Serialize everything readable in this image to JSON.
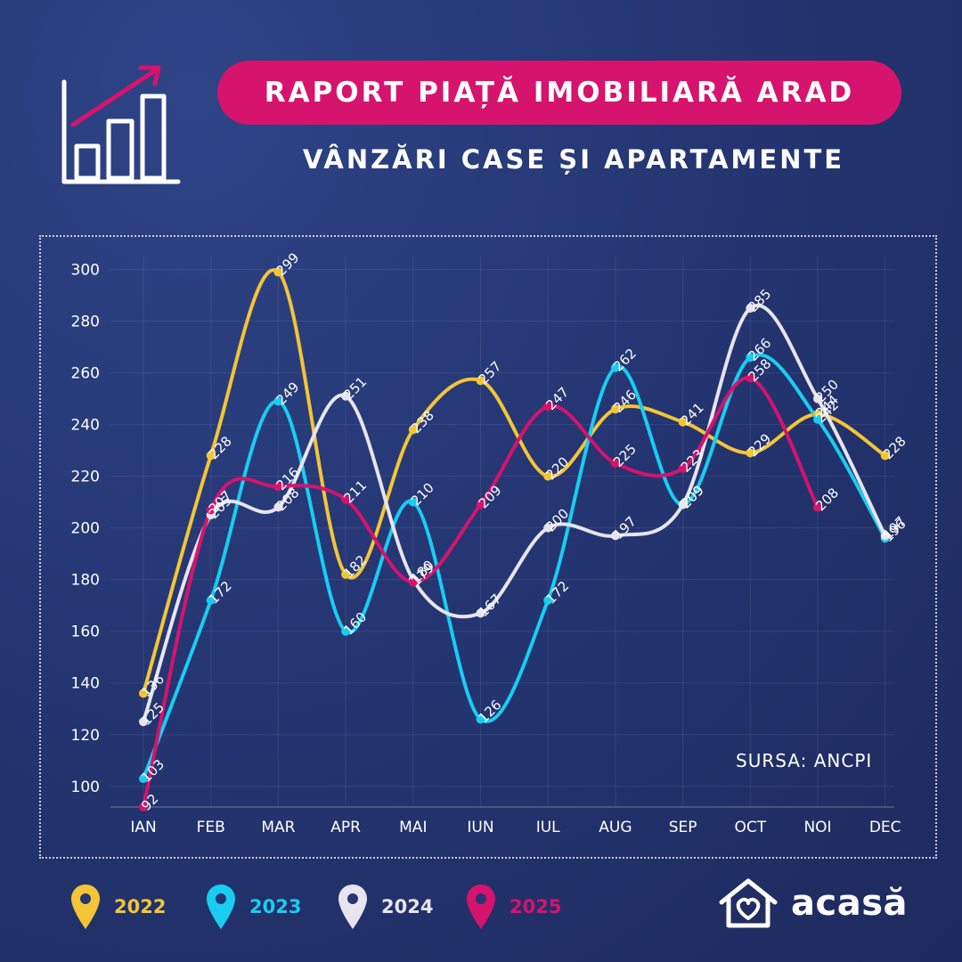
{
  "header": {
    "title": "RAPORT PIAȚĂ IMOBILIARĂ ARAD",
    "subtitle": "VÂNZĂRI CASE ȘI APARTAMENTE",
    "icon": "bar-chart-growth-icon"
  },
  "source_label": "SURSA: ANCPI",
  "brand": {
    "name": "acasă",
    "icon": "house-heart-icon"
  },
  "colors": {
    "background": "#253673",
    "title_pill": "#d6136d",
    "series_2022": "#f3c536",
    "series_2023": "#19cdf0",
    "series_2024": "#e7e4ef",
    "series_2025": "#d6136d"
  },
  "legend": [
    {
      "label": "2022",
      "color": "#f3c536",
      "icon": "map-pin-icon"
    },
    {
      "label": "2023",
      "color": "#19cdf0",
      "icon": "map-pin-icon"
    },
    {
      "label": "2024",
      "color": "#e7e4ef",
      "icon": "map-pin-icon"
    },
    {
      "label": "2025",
      "color": "#d6136d",
      "icon": "map-pin-icon"
    }
  ],
  "chart_data": {
    "type": "line",
    "smooth": true,
    "categories": [
      "IAN",
      "FEB",
      "MAR",
      "APR",
      "MAI",
      "IUN",
      "IUL",
      "AUG",
      "SEP",
      "OCT",
      "NOI",
      "DEC"
    ],
    "ylim": [
      92,
      305
    ],
    "yticks": [
      100,
      120,
      140,
      160,
      180,
      200,
      220,
      240,
      260,
      280,
      300
    ],
    "grid": true,
    "legend_position": "bottom",
    "series": [
      {
        "name": "2022",
        "color": "#f3c536",
        "values": [
          136,
          228,
          299,
          182,
          238,
          257,
          220,
          246,
          241,
          229,
          244,
          228
        ]
      },
      {
        "name": "2023",
        "color": "#19cdf0",
        "values": [
          103,
          172,
          249,
          160,
          210,
          126,
          172,
          262,
          209,
          266,
          242,
          196
        ]
      },
      {
        "name": "2024",
        "color": "#e7e4ef",
        "values": [
          125,
          205,
          208,
          251,
          180,
          167,
          200,
          197,
          209,
          285,
          250,
          197
        ]
      },
      {
        "name": "2025",
        "color": "#d6136d",
        "values": [
          92,
          207,
          216,
          211,
          179,
          209,
          247,
          225,
          223,
          258,
          208,
          null
        ]
      }
    ]
  }
}
